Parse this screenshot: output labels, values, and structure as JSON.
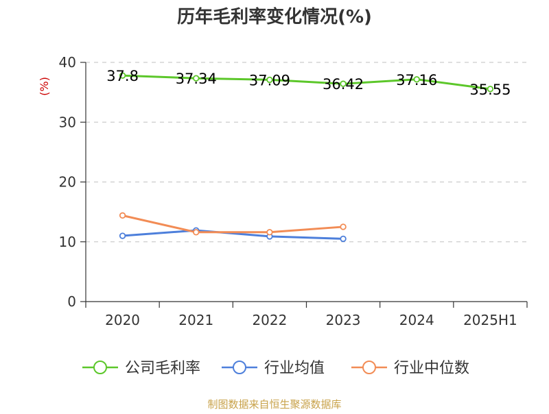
{
  "chart_data": {
    "type": "line",
    "title": "历年毛利率变化情况(%)",
    "ylabel": "(%)",
    "xlabel": "",
    "categories": [
      "2020",
      "2021",
      "2022",
      "2023",
      "2024",
      "2025H1"
    ],
    "ylim": [
      0,
      40
    ],
    "yticks": [
      0,
      10,
      20,
      30,
      40
    ],
    "grid": true,
    "legend_position": "bottom",
    "series": [
      {
        "name": "公司毛利率",
        "color": "#5cc72a",
        "values": [
          37.8,
          37.34,
          37.09,
          36.42,
          37.16,
          35.55
        ],
        "labels": [
          "37.8",
          "37.34",
          "37.09",
          "36.42",
          "37.16",
          "35.55"
        ]
      },
      {
        "name": "行业均值",
        "color": "#4d7fdb",
        "values": [
          11.0,
          11.9,
          10.9,
          10.5,
          null,
          null
        ]
      },
      {
        "name": "行业中位数",
        "color": "#f28c55",
        "values": [
          14.4,
          11.6,
          11.6,
          12.5,
          null,
          null
        ]
      }
    ],
    "source": "制图数据来自恒生聚源数据库"
  }
}
